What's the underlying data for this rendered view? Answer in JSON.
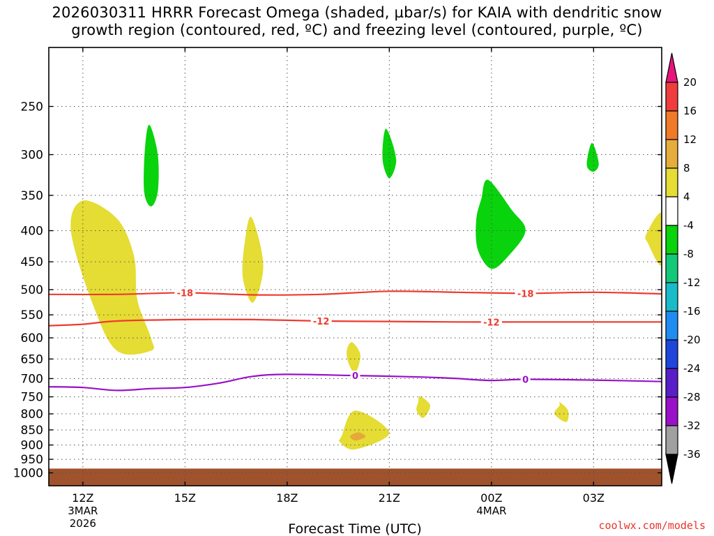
{
  "title_line1": "2026030311 HRRR Forecast Omega (shaded, µbar/s) for KAIA with dendritic snow",
  "title_line2": "growth region (contoured, red, ºC) and freezing level (contoured, purple, ºC)",
  "watermark": "coolwx.com/models",
  "chart_data": {
    "type": "heatmap",
    "title": "2026030311 HRRR Forecast Omega (shaded, µbar/s) for KAIA with dendritic snow growth region (contoured, red, ºC) and freezing level (contoured, purple, ºC)",
    "xlabel": "Forecast Time (UTC)",
    "ylabel": "",
    "x_hours_range": [
      -1,
      17
    ],
    "x_ticks": [
      {
        "hour": 0,
        "label": "12Z",
        "sub1": "3MAR",
        "sub2": "2026"
      },
      {
        "hour": 3,
        "label": "15Z",
        "sub1": "",
        "sub2": ""
      },
      {
        "hour": 6,
        "label": "18Z",
        "sub1": "",
        "sub2": ""
      },
      {
        "hour": 9,
        "label": "21Z",
        "sub1": "",
        "sub2": ""
      },
      {
        "hour": 12,
        "label": "00Z",
        "sub1": "4MAR",
        "sub2": ""
      },
      {
        "hour": 15,
        "label": "03Z",
        "sub1": "",
        "sub2": ""
      }
    ],
    "y_pressure_range_hPa": [
      1050,
      200
    ],
    "y_ticks": [
      250,
      300,
      350,
      400,
      450,
      500,
      550,
      600,
      650,
      700,
      750,
      800,
      850,
      900,
      950,
      1000
    ],
    "grid": true,
    "contours": [
      {
        "label": "-18",
        "color": "#ee3a2e",
        "label_hours": [
          3,
          13
        ],
        "points": [
          [
            -1,
            509
          ],
          [
            1,
            509
          ],
          [
            3,
            506
          ],
          [
            5,
            510
          ],
          [
            7,
            509
          ],
          [
            9,
            503
          ],
          [
            11,
            505
          ],
          [
            13,
            507
          ],
          [
            15,
            505
          ],
          [
            17,
            508
          ]
        ]
      },
      {
        "label": "-12",
        "color": "#ee3a2e",
        "label_hours": [
          7,
          12
        ],
        "points": [
          [
            -1,
            573
          ],
          [
            0,
            570
          ],
          [
            1,
            563
          ],
          [
            3,
            560
          ],
          [
            5,
            560
          ],
          [
            7,
            563
          ],
          [
            9,
            564
          ],
          [
            11,
            565
          ],
          [
            13,
            565
          ],
          [
            15,
            565
          ],
          [
            17,
            565
          ]
        ]
      },
      {
        "label": "0",
        "color": "#9a10c8",
        "label_hours": [
          8,
          13
        ],
        "points": [
          [
            -1,
            722
          ],
          [
            0,
            724
          ],
          [
            1,
            732
          ],
          [
            2,
            727
          ],
          [
            3,
            724
          ],
          [
            4,
            712
          ],
          [
            5,
            694
          ],
          [
            6,
            689
          ],
          [
            8,
            692
          ],
          [
            10,
            696
          ],
          [
            11,
            700
          ],
          [
            12,
            705
          ],
          [
            13,
            702
          ],
          [
            15,
            704
          ],
          [
            17,
            708
          ]
        ]
      }
    ],
    "shaded_regions": [
      {
        "category": "4 to 8",
        "color": "#e5dc34",
        "outline": [
          [
            0,
            357
          ],
          [
            1.0,
            382
          ],
          [
            1.5,
            440
          ],
          [
            1.6,
            520
          ],
          [
            2.0,
            600
          ],
          [
            2.0,
            630
          ],
          [
            1.0,
            630
          ],
          [
            0.3,
            530
          ],
          [
            -0.35,
            400
          ]
        ]
      },
      {
        "category": "4 to 8",
        "color": "#e5dc34",
        "outline": [
          [
            4.95,
            380
          ],
          [
            5.3,
            455
          ],
          [
            5.0,
            525
          ],
          [
            4.7,
            478
          ],
          [
            4.75,
            420
          ]
        ]
      },
      {
        "category": "4 to 8",
        "color": "#e5dc34",
        "outline": [
          [
            7.9,
            610
          ],
          [
            8.15,
            640
          ],
          [
            8.0,
            685
          ],
          [
            7.8,
            660
          ],
          [
            7.75,
            630
          ]
        ]
      },
      {
        "category": "4 to 8",
        "color": "#e5dc34",
        "outline": [
          [
            9.9,
            748
          ],
          [
            10.2,
            775
          ],
          [
            10.0,
            812
          ],
          [
            9.8,
            790
          ],
          [
            9.85,
            765
          ]
        ]
      },
      {
        "category": "4 to 8",
        "color": "#e5dc34",
        "outline": [
          [
            7.6,
            870
          ],
          [
            8.0,
            790
          ],
          [
            9.0,
            860
          ],
          [
            8.0,
            915
          ],
          [
            7.55,
            890
          ]
        ]
      },
      {
        "category": "8 to 12",
        "color": "#e6a83a",
        "outline": [
          [
            7.85,
            870
          ],
          [
            8.1,
            858
          ],
          [
            8.3,
            872
          ],
          [
            8.0,
            885
          ]
        ]
      },
      {
        "category": "4 to 8",
        "color": "#e5dc34",
        "outline": [
          [
            14.0,
            765
          ],
          [
            14.25,
            790
          ],
          [
            14.2,
            825
          ],
          [
            13.85,
            800
          ],
          [
            14.0,
            775
          ]
        ]
      },
      {
        "category": "4 to 8",
        "color": "#e5dc34",
        "outline": [
          [
            16.55,
            405
          ],
          [
            17.0,
            375
          ],
          [
            17.0,
            455
          ],
          [
            16.6,
            420
          ]
        ]
      },
      {
        "category": "-8 to -4",
        "color": "#08d30c",
        "outline": [
          [
            1.95,
            268
          ],
          [
            2.2,
            300
          ],
          [
            2.2,
            345
          ],
          [
            2.0,
            365
          ],
          [
            1.8,
            345
          ],
          [
            1.82,
            295
          ]
        ]
      },
      {
        "category": "-8 to -4",
        "color": "#08d30c",
        "outline": [
          [
            8.9,
            272
          ],
          [
            9.2,
            305
          ],
          [
            9.0,
            328
          ],
          [
            8.8,
            305
          ]
        ]
      },
      {
        "category": "-8 to -4",
        "color": "#08d30c",
        "outline": [
          [
            11.9,
            330
          ],
          [
            12.6,
            370
          ],
          [
            13.0,
            400
          ],
          [
            12.5,
            440
          ],
          [
            12.0,
            462
          ],
          [
            11.6,
            430
          ],
          [
            11.55,
            385
          ],
          [
            11.7,
            355
          ]
        ]
      },
      {
        "category": "-8 to -4",
        "color": "#08d30c",
        "outline": [
          [
            14.95,
            287
          ],
          [
            15.15,
            310
          ],
          [
            15.0,
            320
          ],
          [
            14.8,
            312
          ]
        ]
      }
    ],
    "terrain": {
      "color": "#a0522d",
      "top_hPa": 984
    },
    "colorbar": {
      "labels": [
        "20",
        "16",
        "12",
        "8",
        "4",
        "-4",
        "-8",
        "-12",
        "-16",
        "-20",
        "-24",
        "-28",
        "-32",
        "-36"
      ],
      "colors": [
        "#e8147c",
        "#f03c3c",
        "#f07a28",
        "#e6ac3c",
        "#e5dc34",
        "#ffffff",
        "#08d30c",
        "#14c87a",
        "#18bcc8",
        "#1e8cf0",
        "#1e46dc",
        "#5a1ec8",
        "#9a10c8",
        "#a0a0a0",
        "#000000"
      ]
    }
  }
}
